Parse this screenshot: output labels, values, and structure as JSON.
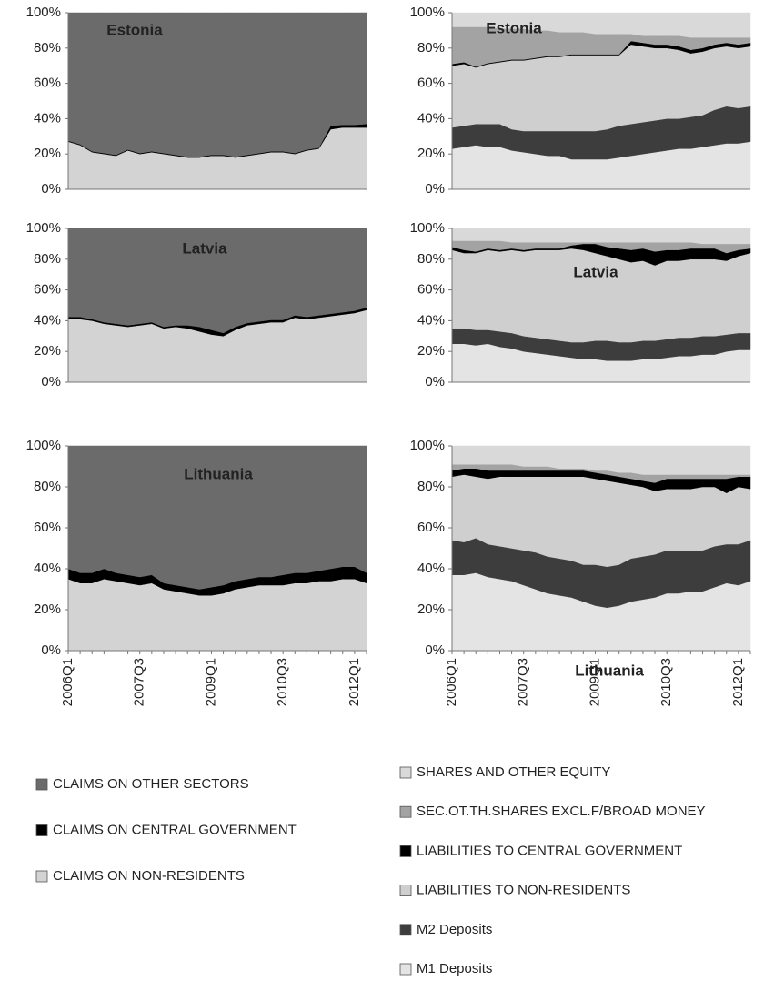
{
  "chart_data": [
    {
      "type": "stacked_area",
      "annotation": "Estonia",
      "ylim": [
        0,
        100
      ],
      "yticks": [
        {
          "value": 0,
          "label": "0%"
        },
        {
          "value": 20,
          "label": "20%"
        },
        {
          "value": 40,
          "label": "40%"
        },
        {
          "value": 60,
          "label": "60%"
        },
        {
          "value": 80,
          "label": "80%"
        },
        {
          "value": 100,
          "label": "100%"
        }
      ],
      "series": [
        {
          "name": "CLAIMS ON OTHER SECTORS",
          "color": "#6b6b6b",
          "values": [
            72.5,
            74.5,
            78.5,
            79.5,
            80.5,
            77.5,
            79.5,
            78.5,
            79.5,
            80.5,
            81.5,
            81.5,
            80.5,
            80.5,
            81.5,
            80.5,
            79.5,
            78.5,
            78.5,
            79.5,
            77.5,
            76.5,
            64,
            63.5,
            63.5,
            63
          ]
        },
        {
          "name": "CLAIMS ON CENTRAL GOVERNMENT",
          "color": "#000000",
          "values": [
            0.5,
            0.5,
            0.5,
            0.5,
            0.5,
            0.5,
            0.5,
            0.5,
            0.5,
            0.5,
            0.5,
            0.5,
            0.5,
            0.5,
            0.5,
            0.5,
            0.5,
            0.5,
            0.5,
            0.5,
            0.5,
            0.5,
            2,
            1.5,
            1.5,
            2
          ]
        },
        {
          "name": "CLAIMS ON NON-RESIDENTS",
          "color": "#d3d3d3",
          "values": [
            27,
            25,
            21,
            20,
            19,
            22,
            20,
            21,
            20,
            19,
            18,
            18,
            19,
            19,
            18,
            19,
            20,
            21,
            21,
            20,
            22,
            23,
            34,
            35,
            35,
            35
          ]
        }
      ]
    },
    {
      "type": "stacked_area",
      "annotation": "Estonia",
      "ylim": [
        0,
        100
      ],
      "yticks": [
        {
          "value": 0,
          "label": "0%"
        },
        {
          "value": 20,
          "label": "20%"
        },
        {
          "value": 40,
          "label": "40%"
        },
        {
          "value": 60,
          "label": "60%"
        },
        {
          "value": 80,
          "label": "80%"
        },
        {
          "value": 100,
          "label": "100%"
        }
      ],
      "series": [
        {
          "name": "SHARES AND OTHER EQUITY",
          "color": "#d9d9d9",
          "values": [
            8,
            8,
            8,
            8,
            9,
            9,
            9,
            10,
            10,
            11,
            11,
            11,
            12,
            12,
            12,
            12,
            13,
            13,
            13,
            13,
            14,
            14,
            14,
            14,
            14,
            14
          ]
        },
        {
          "name": "SEC.OT.TH.SHARES EXCL.F/BROAD MONEY",
          "color": "#a3a3a3",
          "values": [
            21,
            20,
            22.5,
            20.5,
            18.5,
            17.5,
            17.5,
            15.5,
            14.5,
            13.5,
            12.5,
            12.5,
            11.5,
            11.5,
            11.5,
            4,
            4,
            5,
            5,
            6,
            7,
            6,
            4,
            3,
            4,
            3
          ]
        },
        {
          "name": "LIABILITIES TO CENTRAL GOVERNMENT",
          "color": "#000000",
          "values": [
            1,
            1,
            0.5,
            0.5,
            0.5,
            0.5,
            0.5,
            0.5,
            0.5,
            0.5,
            0.5,
            0.5,
            0.5,
            0.5,
            0.5,
            2,
            2,
            2,
            2,
            2,
            2,
            2,
            2,
            2,
            2,
            2
          ]
        },
        {
          "name": "LIABILITIES TO NON-RESIDENTS",
          "color": "#cfcfcf",
          "values": [
            35,
            35,
            32,
            34,
            35,
            39,
            40,
            41,
            42,
            42,
            43,
            43,
            43,
            42,
            40,
            45,
            43,
            41,
            40,
            39,
            36,
            36,
            35,
            34,
            34,
            34
          ]
        },
        {
          "name": "M2 Deposits",
          "color": "#3d3d3d",
          "values": [
            12,
            12,
            12,
            13,
            13,
            12,
            12,
            13,
            14,
            14,
            16,
            16,
            16,
            17,
            18,
            18,
            18,
            18,
            18,
            17,
            18,
            18,
            20,
            21,
            20,
            20
          ]
        },
        {
          "name": "M1 Deposits",
          "color": "#e4e4e4",
          "values": [
            23,
            24,
            25,
            24,
            24,
            22,
            21,
            20,
            19,
            19,
            17,
            17,
            17,
            17,
            18,
            19,
            20,
            21,
            22,
            23,
            23,
            24,
            25,
            26,
            26,
            27
          ]
        }
      ]
    },
    {
      "type": "stacked_area",
      "annotation": "Latvia",
      "ylim": [
        0,
        100
      ],
      "yticks": [
        {
          "value": 0,
          "label": "0%"
        },
        {
          "value": 20,
          "label": "20%"
        },
        {
          "value": 40,
          "label": "40%"
        },
        {
          "value": 60,
          "label": "60%"
        },
        {
          "value": 80,
          "label": "80%"
        },
        {
          "value": 100,
          "label": "100%"
        }
      ],
      "series": [
        {
          "name": "CLAIMS ON OTHER SECTORS",
          "color": "#6b6b6b",
          "values": [
            57.5,
            57.5,
            59,
            61,
            62,
            63,
            62,
            61,
            64,
            63,
            63,
            64,
            66,
            68,
            64,
            61.5,
            60.5,
            59.5,
            59.5,
            56.5,
            57.5,
            56.5,
            55.5,
            54.5,
            53.5,
            51.5
          ]
        },
        {
          "name": "CLAIMS ON CENTRAL GOVERNMENT",
          "color": "#000000",
          "values": [
            1.5,
            1.5,
            1,
            1,
            1,
            1,
            1,
            1,
            1,
            1,
            2,
            3,
            3,
            2,
            2,
            1.5,
            1.5,
            1.5,
            1.5,
            1.5,
            1.5,
            1.5,
            1.5,
            1.5,
            1.5,
            1.5
          ]
        },
        {
          "name": "CLAIMS ON NON-RESIDENTS",
          "color": "#d3d3d3",
          "values": [
            41,
            41,
            40,
            38,
            37,
            36,
            37,
            38,
            35,
            36,
            35,
            33,
            31,
            30,
            34,
            37,
            38,
            39,
            39,
            42,
            41,
            42,
            43,
            44,
            45,
            47
          ]
        }
      ]
    },
    {
      "type": "stacked_area",
      "annotation": "Latvia",
      "ylim": [
        0,
        100
      ],
      "yticks": [
        {
          "value": 0,
          "label": "0%"
        },
        {
          "value": 20,
          "label": "20%"
        },
        {
          "value": 40,
          "label": "40%"
        },
        {
          "value": 60,
          "label": "60%"
        },
        {
          "value": 80,
          "label": "80%"
        },
        {
          "value": 100,
          "label": "100%"
        }
      ],
      "series": [
        {
          "name": "SHARES AND OTHER EQUITY",
          "color": "#d9d9d9",
          "values": [
            8,
            8,
            8,
            8,
            8,
            9,
            9,
            9,
            9,
            9,
            9,
            9,
            9,
            9,
            9,
            9,
            9,
            9,
            9,
            9,
            9,
            10,
            10,
            10,
            10,
            10
          ]
        },
        {
          "name": "SEC.OT.TH.SHARES EXCL.F/BROAD MONEY",
          "color": "#a3a3a3",
          "values": [
            4,
            6,
            7,
            5,
            6,
            4,
            5,
            4,
            4,
            4,
            2,
            1,
            1,
            3,
            4,
            5,
            4,
            6,
            5,
            5,
            4,
            3,
            3,
            6,
            4,
            3
          ]
        },
        {
          "name": "LIABILITIES TO CENTRAL GOVERNMENT",
          "color": "#000000",
          "values": [
            2,
            2,
            1,
            1,
            1,
            1,
            1,
            1,
            1,
            1,
            2,
            4,
            6,
            6,
            7,
            8,
            8,
            9,
            7,
            7,
            7,
            7,
            7,
            5,
            4,
            3
          ]
        },
        {
          "name": "LIABILITIES TO NON-RESIDENTS",
          "color": "#cfcfcf",
          "values": [
            51,
            49,
            50,
            52,
            52,
            54,
            55,
            57,
            58,
            59,
            61,
            60,
            57,
            55,
            54,
            52,
            52,
            49,
            51,
            50,
            51,
            50,
            50,
            48,
            50,
            52
          ]
        },
        {
          "name": "M2 Deposits",
          "color": "#3d3d3d",
          "values": [
            10,
            10,
            10,
            9,
            10,
            10,
            10,
            10,
            10,
            10,
            10,
            11,
            12,
            13,
            12,
            12,
            12,
            12,
            12,
            12,
            12,
            12,
            12,
            11,
            11,
            11
          ]
        },
        {
          "name": "M1 Deposits",
          "color": "#e4e4e4",
          "values": [
            25,
            25,
            24,
            25,
            23,
            22,
            20,
            19,
            18,
            17,
            16,
            15,
            15,
            14,
            14,
            14,
            15,
            15,
            16,
            17,
            17,
            18,
            18,
            20,
            21,
            21
          ]
        }
      ]
    },
    {
      "type": "stacked_area",
      "annotation": "Lithuania",
      "categories": [
        "2006Q1",
        null,
        null,
        null,
        null,
        null,
        "2007Q3",
        null,
        null,
        null,
        null,
        null,
        "2009Q1",
        null,
        null,
        null,
        null,
        null,
        "2010Q3",
        null,
        null,
        null,
        null,
        null,
        "2012Q1",
        null
      ],
      "ylim": [
        0,
        100
      ],
      "yticks": [
        {
          "value": 0,
          "label": "0%"
        },
        {
          "value": 20,
          "label": "20%"
        },
        {
          "value": 40,
          "label": "40%"
        },
        {
          "value": 60,
          "label": "60%"
        },
        {
          "value": 80,
          "label": "80%"
        },
        {
          "value": 100,
          "label": "100%"
        }
      ],
      "series": [
        {
          "name": "CLAIMS ON OTHER SECTORS",
          "color": "#6b6b6b",
          "values": [
            60,
            62,
            62,
            60,
            62,
            63,
            64,
            63,
            67,
            68,
            69,
            70,
            69,
            68,
            66,
            65,
            64,
            64,
            63,
            62,
            62,
            61,
            60,
            59,
            59,
            62
          ]
        },
        {
          "name": "CLAIMS ON CENTRAL GOVERNMENT",
          "color": "#000000",
          "values": [
            5,
            5,
            5,
            5,
            4,
            4,
            4,
            4,
            3,
            3,
            3,
            3,
            4,
            4,
            4,
            4,
            4,
            4,
            5,
            5,
            5,
            5,
            6,
            6,
            6,
            5
          ]
        },
        {
          "name": "CLAIMS ON NON-RESIDENTS",
          "color": "#d3d3d3",
          "values": [
            35,
            33,
            33,
            35,
            34,
            33,
            32,
            33,
            30,
            29,
            28,
            27,
            27,
            28,
            30,
            31,
            32,
            32,
            32,
            33,
            33,
            34,
            34,
            35,
            35,
            33
          ]
        }
      ]
    },
    {
      "type": "stacked_area",
      "annotation": "Lithuania",
      "categories": [
        "2006Q1",
        null,
        null,
        null,
        null,
        null,
        "2007Q3",
        null,
        null,
        null,
        null,
        null,
        "2009Q1",
        null,
        null,
        null,
        null,
        null,
        "2010Q3",
        null,
        null,
        null,
        null,
        null,
        "2012Q1",
        null
      ],
      "ylim": [
        0,
        100
      ],
      "yticks": [
        {
          "value": 0,
          "label": "0%"
        },
        {
          "value": 20,
          "label": "20%"
        },
        {
          "value": 40,
          "label": "40%"
        },
        {
          "value": 60,
          "label": "60%"
        },
        {
          "value": 80,
          "label": "80%"
        },
        {
          "value": 100,
          "label": "100%"
        }
      ],
      "series": [
        {
          "name": "SHARES AND OTHER EQUITY",
          "color": "#d9d9d9",
          "values": [
            9,
            9,
            9,
            9,
            9,
            9,
            10,
            10,
            10,
            11,
            11,
            11,
            12,
            12,
            13,
            13,
            14,
            14,
            14,
            14,
            14,
            14,
            14,
            14,
            14,
            14
          ]
        },
        {
          "name": "SEC.OT.TH.SHARES EXCL.F/BROAD MONEY",
          "color": "#a3a3a3",
          "values": [
            3,
            2,
            2,
            3,
            3,
            3,
            2,
            2,
            2,
            1,
            1,
            1,
            1,
            2,
            2,
            3,
            3,
            4,
            2,
            2,
            2,
            2,
            2,
            2,
            1,
            1
          ]
        },
        {
          "name": "LIABILITIES TO CENTRAL GOVERNMENT",
          "color": "#000000",
          "values": [
            3,
            3,
            4,
            4,
            3,
            3,
            3,
            3,
            3,
            3,
            3,
            3,
            3,
            3,
            3,
            3,
            3,
            4,
            5,
            5,
            5,
            4,
            4,
            7,
            5,
            6
          ]
        },
        {
          "name": "LIABILITIES TO NON-RESIDENTS",
          "color": "#cfcfcf",
          "values": [
            31,
            33,
            30,
            32,
            34,
            35,
            36,
            37,
            39,
            40,
            41,
            43,
            42,
            42,
            40,
            36,
            34,
            31,
            30,
            30,
            30,
            31,
            29,
            25,
            28,
            25
          ]
        },
        {
          "name": "M2 Deposits",
          "color": "#3d3d3d",
          "values": [
            17,
            16,
            17,
            16,
            16,
            16,
            17,
            18,
            18,
            18,
            18,
            18,
            20,
            20,
            20,
            21,
            21,
            21,
            21,
            21,
            20,
            20,
            20,
            19,
            20,
            20
          ]
        },
        {
          "name": "M1 Deposits",
          "color": "#e4e4e4",
          "values": [
            37,
            37,
            38,
            36,
            35,
            34,
            32,
            30,
            28,
            27,
            26,
            24,
            22,
            21,
            22,
            24,
            25,
            26,
            28,
            28,
            29,
            29,
            31,
            33,
            32,
            34
          ]
        }
      ]
    }
  ]
}
